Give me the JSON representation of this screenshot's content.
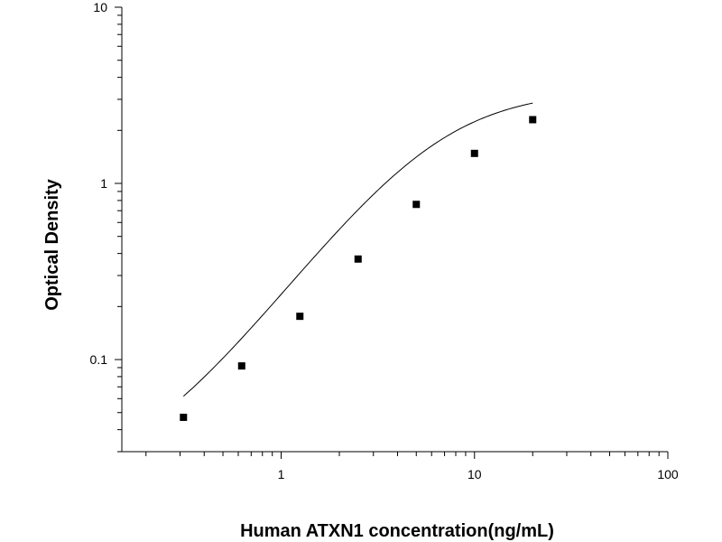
{
  "chart_data": {
    "type": "scatter",
    "xlabel": "Human ATXN1 concentration(ng/mL)",
    "ylabel": "Optical Density",
    "xscale": "log",
    "yscale": "log",
    "xlim": [
      0.15,
      100
    ],
    "ylim": [
      0.03,
      10
    ],
    "x_ticks": [
      {
        "value": 1,
        "label": "1"
      },
      {
        "value": 10,
        "label": "10"
      },
      {
        "value": 100,
        "label": "100"
      }
    ],
    "y_ticks": [
      {
        "value": 0.1,
        "label": "0.1"
      },
      {
        "value": 1,
        "label": "1"
      },
      {
        "value": 10,
        "label": "10"
      }
    ],
    "grid": false,
    "legend": "none",
    "series": [
      {
        "marker": "square",
        "color": "#000000",
        "points": [
          {
            "x": 0.3125,
            "y": 0.047
          },
          {
            "x": 0.625,
            "y": 0.092
          },
          {
            "x": 1.25,
            "y": 0.176
          },
          {
            "x": 2.5,
            "y": 0.372
          },
          {
            "x": 5,
            "y": 0.76
          },
          {
            "x": 10,
            "y": 1.48
          },
          {
            "x": 20,
            "y": 2.3
          }
        ]
      }
    ],
    "fit_curve": {
      "type": "4PL",
      "color": "#000000",
      "params": {
        "A": 0.02,
        "B": 1.45,
        "C": 6.4,
        "D": 3.4
      },
      "x_range": [
        0.3125,
        20
      ]
    }
  }
}
